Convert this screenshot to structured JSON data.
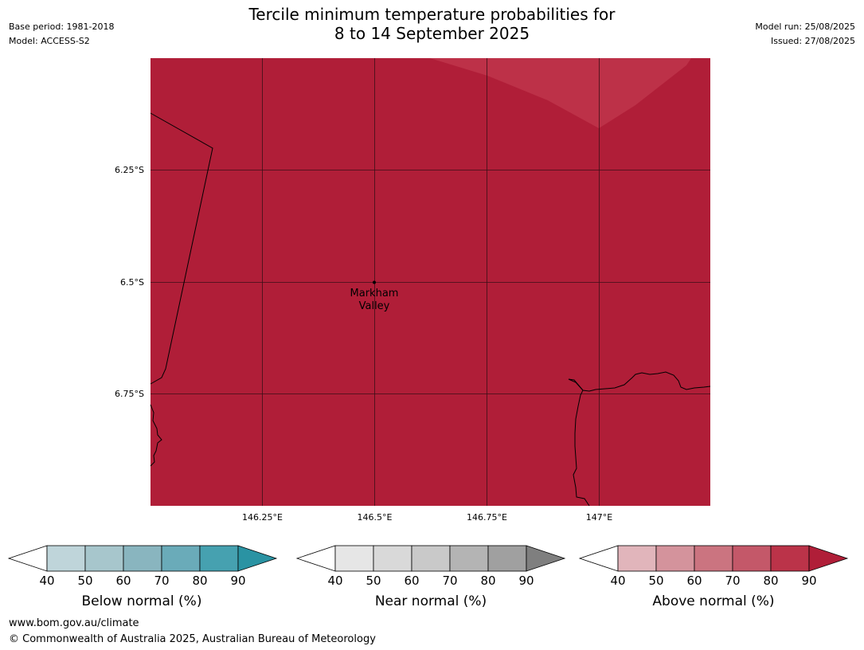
{
  "header": {
    "title_line1": "Tercile minimum temperature probabilities for",
    "title_line2": "8 to 14 September 2025",
    "base_period": "Base period: 1981-2018",
    "model": "Model: ACCESS-S2",
    "model_run": "Model run: 25/08/2025",
    "issued": "Issued: 27/08/2025"
  },
  "map": {
    "fill_color": "#b01e38",
    "overlay_color": "#bd3148",
    "lat_labels": [
      "6.25°S",
      "6.5°S",
      "6.75°S"
    ],
    "lon_labels": [
      "146.25°E",
      "146.5°E",
      "146.75°E",
      "147°E"
    ],
    "place_name_line1": "Markham",
    "place_name_line2": "Valley"
  },
  "legends": [
    {
      "name": "below-normal",
      "label": "Below normal (%)",
      "ticks": [
        "40",
        "50",
        "60",
        "70",
        "80",
        "90"
      ],
      "colors": [
        "#bfd5da",
        "#a7c6cc",
        "#89b5bf",
        "#6aabb9",
        "#46a1b0",
        "#2a93a3"
      ]
    },
    {
      "name": "near-normal",
      "label": "Near normal (%)",
      "ticks": [
        "40",
        "50",
        "60",
        "70",
        "80",
        "90"
      ],
      "colors": [
        "#e6e6e6",
        "#d9d9d9",
        "#c9c9c9",
        "#b4b4b4",
        "#a0a0a0",
        "#7f7f7f"
      ]
    },
    {
      "name": "above-normal",
      "label": "Above normal (%)",
      "ticks": [
        "40",
        "50",
        "60",
        "70",
        "80",
        "90"
      ],
      "colors": [
        "#e1b5bb",
        "#d4939c",
        "#cb7480",
        "#c45869",
        "#bb3349",
        "#b01e38"
      ]
    }
  ],
  "footer": {
    "website": "www.bom.gov.au/climate",
    "copyright": "© Commonwealth of Australia 2025, Australian Bureau of Meteorology"
  }
}
